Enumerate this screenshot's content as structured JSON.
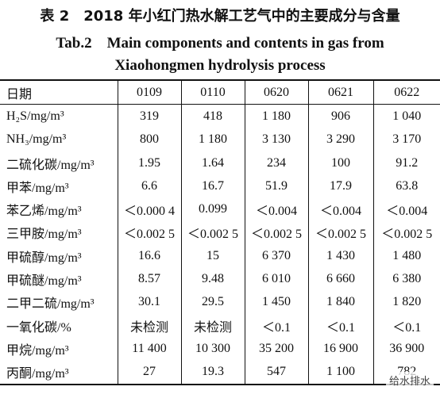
{
  "title": {
    "cn": "表 2　2018 年小红门热水解工艺气中的主要成分与含量",
    "en1": "Tab.2　Main components and contents in gas from",
    "en2": "Xiaohongmen hydrolysis process"
  },
  "table": {
    "header": [
      "日期",
      "0109",
      "0110",
      "0620",
      "0621",
      "0622"
    ],
    "rows": [
      [
        "H₂S/mg/m³",
        "319",
        "418",
        "1 180",
        "906",
        "1 040"
      ],
      [
        "NH₃/mg/m³",
        "800",
        "1 180",
        "3 130",
        "3 290",
        "3 170"
      ],
      [
        "二硫化碳/mg/m³",
        "1.95",
        "1.64",
        "234",
        "100",
        "91.2"
      ],
      [
        "甲苯/mg/m³",
        "6.6",
        "16.7",
        "51.9",
        "17.9",
        "63.8"
      ],
      [
        "苯乙烯/mg/m³",
        "＜0.000 4",
        "0.099",
        "＜0.004",
        "＜0.004",
        "＜0.004"
      ],
      [
        "三甲胺/mg/m³",
        "＜0.002 5",
        "＜0.002 5",
        "＜0.002 5",
        "＜0.002 5",
        "＜0.002 5"
      ],
      [
        "甲硫醇/mg/m³",
        "16.6",
        "15",
        "6 370",
        "1 430",
        "1 480"
      ],
      [
        "甲硫醚/mg/m³",
        "8.57",
        "9.48",
        "6 010",
        "6 660",
        "6 380"
      ],
      [
        "二甲二硫/mg/m³",
        "30.1",
        "29.5",
        "1 450",
        "1 840",
        "1 820"
      ],
      [
        "一氧化碳/%",
        "未检测",
        "未检测",
        "＜0.1",
        "＜0.1",
        "＜0.1"
      ],
      [
        "甲烷/mg/m³",
        "11 400",
        "10 300",
        "35 200",
        "16 900",
        "36 900"
      ],
      [
        "丙酮/mg/m³",
        "27",
        "19.3",
        "547",
        "1 100",
        "782"
      ]
    ]
  },
  "watermark": "给水排水"
}
